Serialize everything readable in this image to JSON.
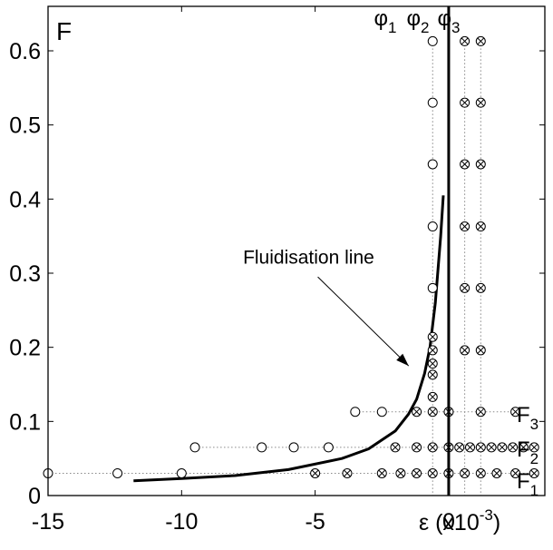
{
  "chart_data": {
    "type": "scatter",
    "panel_label": "F",
    "xlabel": "ε (x10",
    "xlabel_exp": "-3",
    "xlabel_close": ")",
    "xlim": [
      -15,
      3.6
    ],
    "ylim": [
      0,
      0.66
    ],
    "x_ticks": [
      -15,
      -10,
      -5,
      0
    ],
    "x_tick_labels": [
      "-15",
      "-10",
      "-5",
      "0"
    ],
    "y_ticks": [
      0,
      0.1,
      0.2,
      0.3,
      0.4,
      0.5,
      0.6
    ],
    "y_tick_labels": [
      "0",
      "0.1",
      "0.2",
      "0.3",
      "0.4",
      "0.5",
      "0.6"
    ],
    "grid": false,
    "phi_lines": [
      {
        "base": "φ",
        "sub": "1",
        "x": -0.6
      },
      {
        "base": "φ",
        "sub": "2",
        "x": 0.6
      },
      {
        "base": "φ",
        "sub": "3",
        "x": 1.2
      }
    ],
    "force_levels": [
      {
        "base": "F",
        "sub": "1",
        "y": 0.03
      },
      {
        "base": "F",
        "sub": "2",
        "y": 0.065
      },
      {
        "base": "F",
        "sub": "3",
        "y": 0.113
      }
    ],
    "annotation": {
      "text": "Fluidisation line",
      "text_x": -7.7,
      "text_y": 0.313,
      "arrow_to_x": -1.5,
      "arrow_to_y": 0.175
    },
    "fluidisation_line": {
      "x": [
        -11.8,
        -10,
        -8,
        -6,
        -4,
        -3,
        -2,
        -1.5,
        -1.2,
        -0.9,
        -0.7,
        -0.5,
        -0.3,
        -0.2
      ],
      "y": [
        0.02,
        0.023,
        0.027,
        0.035,
        0.05,
        0.063,
        0.087,
        0.11,
        0.13,
        0.165,
        0.2,
        0.26,
        0.35,
        0.405
      ]
    },
    "vertical_axis_line_x": 0,
    "series": [
      {
        "marker": "open-circle",
        "points": [
          [
            -15.0,
            0.03
          ],
          [
            -12.4,
            0.03
          ],
          [
            -10.0,
            0.03
          ],
          [
            -9.5,
            0.065
          ],
          [
            -7.0,
            0.065
          ],
          [
            -5.8,
            0.065
          ],
          [
            -4.5,
            0.065
          ],
          [
            -3.5,
            0.113
          ],
          [
            -2.5,
            0.113
          ],
          [
            -0.6,
            0.613
          ],
          [
            -0.6,
            0.53
          ],
          [
            -0.6,
            0.447
          ],
          [
            -0.6,
            0.363
          ],
          [
            -0.6,
            0.28
          ]
        ]
      },
      {
        "marker": "crossed-circle",
        "points": [
          [
            -5.0,
            0.03
          ],
          [
            -3.8,
            0.03
          ],
          [
            -2.5,
            0.03
          ],
          [
            -1.8,
            0.03
          ],
          [
            -1.2,
            0.03
          ],
          [
            -0.6,
            0.03
          ],
          [
            0.0,
            0.03
          ],
          [
            0.6,
            0.03
          ],
          [
            1.2,
            0.03
          ],
          [
            1.8,
            0.03
          ],
          [
            2.5,
            0.03
          ],
          [
            3.2,
            0.03
          ],
          [
            -2.0,
            0.065
          ],
          [
            -1.2,
            0.065
          ],
          [
            -0.6,
            0.065
          ],
          [
            0.0,
            0.065
          ],
          [
            0.4,
            0.065
          ],
          [
            0.8,
            0.065
          ],
          [
            1.2,
            0.065
          ],
          [
            1.6,
            0.065
          ],
          [
            2.0,
            0.065
          ],
          [
            2.4,
            0.065
          ],
          [
            2.8,
            0.065
          ],
          [
            3.2,
            0.065
          ],
          [
            -1.2,
            0.113
          ],
          [
            -0.6,
            0.113
          ],
          [
            0.0,
            0.113
          ],
          [
            1.2,
            0.113
          ],
          [
            2.5,
            0.113
          ],
          [
            -0.6,
            0.133
          ],
          [
            -0.6,
            0.163
          ],
          [
            -0.6,
            0.178
          ],
          [
            -0.6,
            0.196
          ],
          [
            -0.6,
            0.214
          ],
          [
            0.6,
            0.613
          ],
          [
            1.2,
            0.613
          ],
          [
            0.6,
            0.53
          ],
          [
            1.2,
            0.53
          ],
          [
            0.6,
            0.447
          ],
          [
            1.2,
            0.447
          ],
          [
            0.6,
            0.363
          ],
          [
            1.2,
            0.363
          ],
          [
            0.6,
            0.28
          ],
          [
            1.2,
            0.28
          ],
          [
            0.6,
            0.196
          ],
          [
            1.2,
            0.196
          ]
        ]
      }
    ]
  }
}
